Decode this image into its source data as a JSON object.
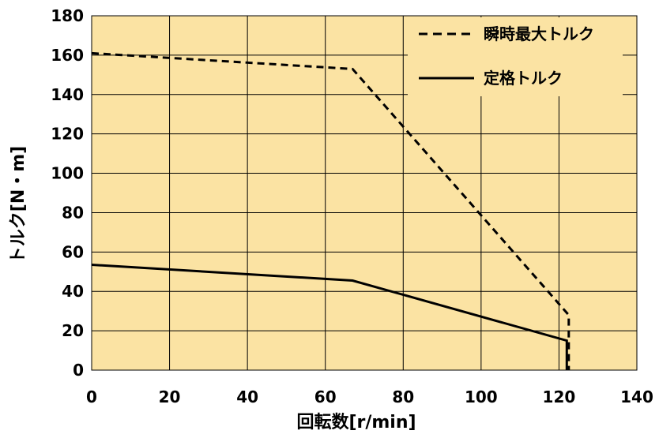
{
  "chart_data": {
    "type": "line",
    "xlabel": "回転数[r/min]",
    "ylabel": "トルク[N・m]",
    "xlim": [
      0,
      140
    ],
    "ylim": [
      0,
      180
    ],
    "xticks": [
      0,
      20,
      40,
      60,
      80,
      100,
      120,
      140
    ],
    "yticks": [
      0,
      20,
      40,
      60,
      80,
      100,
      120,
      140,
      160,
      180
    ],
    "grid": true,
    "legend_position": "top-right",
    "plot_background": "#FBE3A3",
    "series": [
      {
        "name": "瞬時最大トルク",
        "style": "dashed",
        "color": "#000000",
        "x": [
          0,
          67,
          122.5,
          122.5
        ],
        "y": [
          161,
          153,
          28,
          0
        ]
      },
      {
        "name": "定格トルク",
        "style": "solid",
        "color": "#000000",
        "x": [
          0,
          67,
          122,
          122
        ],
        "y": [
          53.5,
          45.5,
          15,
          0
        ]
      }
    ]
  }
}
